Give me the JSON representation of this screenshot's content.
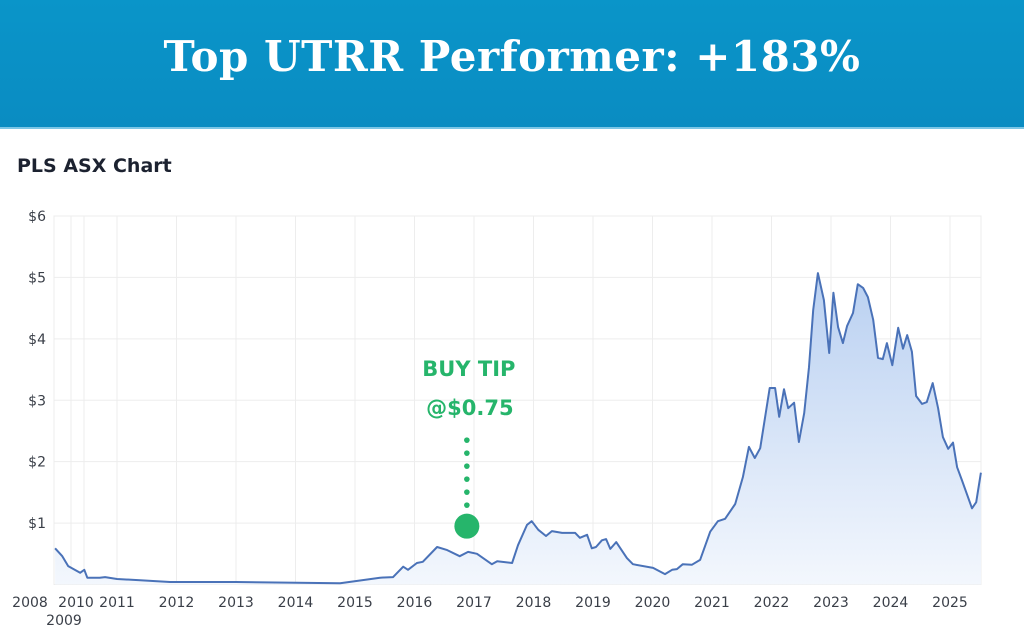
{
  "banner": {
    "title": "Top UTRR Performer: +183%"
  },
  "chart_data": {
    "type": "area",
    "title": "PLS ASX Chart",
    "xlabel": "",
    "ylabel": "",
    "ylim": [
      0,
      6
    ],
    "xlim": [
      2009.96,
      2025.52
    ],
    "grid": true,
    "y_ticks": [
      "$1",
      "$2",
      "$3",
      "$4",
      "$5",
      "$6"
    ],
    "y_tick_values": [
      1,
      2,
      3,
      4,
      5,
      6
    ],
    "x_ticks": [
      "2008",
      "2009",
      "2010",
      "2011",
      "2012",
      "2013",
      "2014",
      "2015",
      "2016",
      "2017",
      "2018",
      "2019",
      "2020",
      "2021",
      "2022",
      "2023",
      "2024",
      "2025"
    ],
    "colors": {
      "line": "#4a72b8",
      "fill_top": "#b9d0f1",
      "fill_bottom": "#f3f7fd",
      "annotation": "#26b56b",
      "banner": "#0a92c7"
    },
    "series": [
      {
        "x": [
          2009.96,
          2010.08,
          2010.18,
          2010.38,
          2010.45,
          2010.5,
          2010.71,
          2010.8,
          2011.0,
          2011.39,
          2011.89,
          2013.0,
          2014.75,
          2015.42,
          2015.64,
          2015.81,
          2015.89,
          2016.04,
          2016.14,
          2016.38,
          2016.55,
          2016.76,
          2016.9,
          2017.05,
          2017.3,
          2017.39,
          2017.64,
          2017.74,
          2017.89,
          2017.97,
          2018.08,
          2018.21,
          2018.31,
          2018.48,
          2018.7,
          2018.78,
          2018.9,
          2018.98,
          2019.05,
          2019.15,
          2019.22,
          2019.29,
          2019.39,
          2019.57,
          2019.67,
          2020.01,
          2020.21,
          2020.33,
          2020.41,
          2020.51,
          2020.66,
          2020.8,
          2020.97,
          2021.1,
          2021.22,
          2021.39,
          2021.52,
          2021.62,
          2021.72,
          2021.81,
          2021.97,
          2022.06,
          2022.13,
          2022.21,
          2022.28,
          2022.38,
          2022.46,
          2022.55,
          2022.63,
          2022.7,
          2022.78,
          2022.88,
          2022.97,
          2023.04,
          2023.12,
          2023.2,
          2023.27,
          2023.37,
          2023.45,
          2023.54,
          2023.62,
          2023.71,
          2023.79,
          2023.87,
          2023.94,
          2024.03,
          2024.13,
          2024.21,
          2024.28,
          2024.36,
          2024.43,
          2024.53,
          2024.61,
          2024.71,
          2024.8,
          2024.88,
          2024.97,
          2025.05,
          2025.12,
          2025.2,
          2025.37,
          2025.44,
          2025.52
        ],
        "y": [
          0.59,
          0.46,
          0.3,
          0.19,
          0.24,
          0.11,
          0.11,
          0.12,
          0.09,
          0.07,
          0.04,
          0.04,
          0.02,
          0.11,
          0.12,
          0.29,
          0.24,
          0.35,
          0.37,
          0.61,
          0.56,
          0.46,
          0.53,
          0.5,
          0.33,
          0.38,
          0.35,
          0.64,
          0.97,
          1.03,
          0.89,
          0.79,
          0.87,
          0.84,
          0.84,
          0.76,
          0.81,
          0.59,
          0.61,
          0.72,
          0.74,
          0.58,
          0.69,
          0.43,
          0.33,
          0.27,
          0.17,
          0.24,
          0.25,
          0.33,
          0.32,
          0.4,
          0.86,
          1.03,
          1.07,
          1.31,
          1.75,
          2.24,
          2.06,
          2.22,
          3.2,
          3.2,
          2.73,
          3.18,
          2.87,
          2.96,
          2.32,
          2.79,
          3.54,
          4.47,
          5.07,
          4.63,
          3.77,
          4.75,
          4.19,
          3.93,
          4.21,
          4.42,
          4.89,
          4.83,
          4.68,
          4.31,
          3.69,
          3.67,
          3.93,
          3.57,
          4.18,
          3.84,
          4.06,
          3.79,
          3.07,
          2.94,
          2.97,
          3.28,
          2.87,
          2.4,
          2.21,
          2.31,
          1.91,
          1.7,
          1.24,
          1.34,
          1.82
        ]
      }
    ],
    "annotations": [
      {
        "lines": [
          "BUY TIP",
          "@$0.75"
        ],
        "x": 2016.88,
        "y": 0.95
      }
    ]
  }
}
